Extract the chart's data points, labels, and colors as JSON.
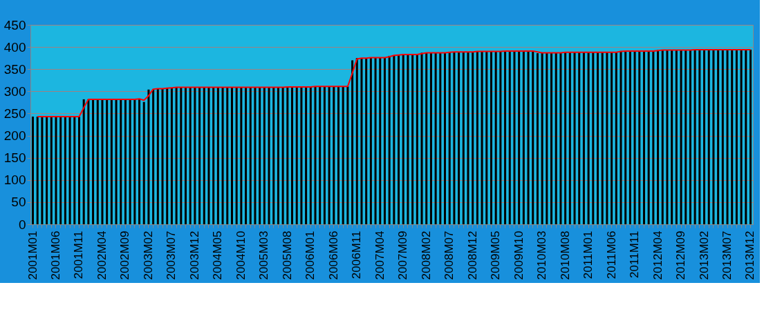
{
  "chart_data": {
    "type": "bar",
    "categories": [
      "2001M01",
      null,
      null,
      null,
      null,
      "2001M06",
      null,
      null,
      null,
      null,
      "2001M11",
      null,
      null,
      null,
      null,
      "2002M04",
      null,
      null,
      null,
      null,
      "2002M09",
      null,
      null,
      null,
      null,
      "2003M02",
      null,
      null,
      null,
      null,
      "2003M07",
      null,
      null,
      null,
      null,
      "2003M12",
      null,
      null,
      null,
      null,
      "2004M05",
      null,
      null,
      null,
      null,
      "2004M10",
      null,
      null,
      null,
      null,
      "2005M03",
      null,
      null,
      null,
      null,
      "2005M08",
      null,
      null,
      null,
      null,
      "2006M01",
      null,
      null,
      null,
      null,
      "2006M06",
      null,
      null,
      null,
      null,
      "2006M11",
      null,
      null,
      null,
      null,
      "2007M04",
      null,
      null,
      null,
      null,
      "2007M09",
      null,
      null,
      null,
      null,
      "2008M02",
      null,
      null,
      null,
      null,
      "2008M07",
      null,
      null,
      null,
      null,
      "2008M12",
      null,
      null,
      null,
      null,
      "2009M05",
      null,
      null,
      null,
      null,
      "2009M10",
      null,
      null,
      null,
      null,
      "2010M03",
      null,
      null,
      null,
      null,
      "2010M08",
      null,
      null,
      null,
      null,
      "2011M01",
      null,
      null,
      null,
      null,
      "2011M06",
      null,
      null,
      null,
      null,
      "2011M11",
      null,
      null,
      null,
      null,
      "2012M04",
      null,
      null,
      null,
      null,
      "2012M09",
      null,
      null,
      null,
      null,
      "2013M02",
      null,
      null,
      null,
      null,
      "2013M07",
      null,
      null,
      null,
      null,
      "2013M12"
    ],
    "series": [
      {
        "color": "#000000",
        "values": [
          243,
          243,
          243,
          243,
          243,
          243,
          243,
          243,
          243,
          243,
          243,
          282,
          282,
          282,
          282,
          282,
          282,
          282,
          282,
          282,
          282,
          282,
          282,
          283,
          276,
          304,
          305,
          306,
          306,
          308,
          308,
          309,
          309,
          309,
          309,
          309,
          309,
          309,
          309,
          309,
          309,
          309,
          309,
          309,
          309,
          309,
          309,
          309,
          309,
          309,
          309,
          309,
          309,
          309,
          309,
          310,
          310,
          310,
          310,
          310,
          310,
          311,
          311,
          311,
          311,
          311,
          311,
          311,
          311,
          370,
          375,
          375,
          375,
          376,
          376,
          376,
          376,
          380,
          381,
          382,
          383,
          383,
          383,
          383,
          387,
          387,
          387,
          387,
          387,
          387,
          389,
          389,
          389,
          389,
          389,
          389,
          390,
          390,
          390,
          390,
          390,
          390,
          391,
          391,
          391,
          391,
          391,
          391,
          391,
          386,
          387,
          387,
          387,
          387,
          387,
          388,
          388,
          388,
          388,
          388,
          388,
          388,
          388,
          388,
          388,
          388,
          388,
          391,
          391,
          391,
          391,
          391,
          391,
          391,
          391,
          393,
          393,
          393,
          393,
          393,
          393,
          393,
          393,
          394,
          394,
          394,
          394,
          394,
          394,
          394,
          394,
          394,
          394,
          394,
          394,
          394
        ]
      },
      {
        "type": "line",
        "color": "#ff0000",
        "values": [
          null,
          243,
          243,
          243,
          243,
          243,
          243,
          243,
          243,
          243,
          243,
          263,
          282,
          282,
          282,
          282,
          282,
          282,
          282,
          282,
          282,
          282,
          282,
          283,
          280,
          290,
          305,
          306,
          306,
          307,
          308,
          309,
          309,
          309,
          309,
          309,
          309,
          309,
          309,
          309,
          309,
          309,
          309,
          309,
          309,
          309,
          309,
          309,
          309,
          309,
          309,
          309,
          309,
          309,
          309,
          310,
          310,
          310,
          310,
          310,
          310,
          311,
          311,
          311,
          311,
          311,
          311,
          311,
          311,
          341,
          373,
          375,
          375,
          376,
          376,
          376,
          376,
          378,
          381,
          382,
          383,
          383,
          383,
          383,
          385,
          387,
          387,
          387,
          387,
          387,
          388,
          389,
          389,
          389,
          389,
          389,
          390,
          390,
          390,
          390,
          390,
          390,
          391,
          391,
          391,
          391,
          391,
          391,
          391,
          389,
          387,
          387,
          387,
          387,
          387,
          388,
          388,
          388,
          388,
          388,
          388,
          388,
          388,
          388,
          388,
          388,
          388,
          390,
          391,
          391,
          391,
          391,
          391,
          391,
          391,
          392,
          393,
          393,
          393,
          393,
          393,
          393,
          393,
          394,
          394,
          394,
          394,
          394,
          394,
          394,
          394,
          394,
          394,
          394,
          394,
          394
        ]
      }
    ],
    "ylim": [
      0,
      450
    ],
    "yticks": [
      0,
      50,
      100,
      150,
      200,
      250,
      300,
      350,
      400,
      450
    ],
    "grid": "y"
  }
}
